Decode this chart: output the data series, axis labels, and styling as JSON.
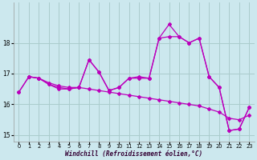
{
  "xlabel": "Windchill (Refroidissement éolien,°C)",
  "bg_color": "#cce8ee",
  "line_color": "#bb00bb",
  "grid_color": "#aacccc",
  "series1_x": [
    0,
    1,
    2,
    3,
    4,
    5,
    6,
    7,
    8,
    9,
    10,
    11,
    12,
    13,
    14,
    15,
    16,
    17,
    18,
    19,
    20,
    21,
    22,
    23
  ],
  "series1_y": [
    16.4,
    16.9,
    16.85,
    16.7,
    16.6,
    16.55,
    16.55,
    16.5,
    16.45,
    16.4,
    16.35,
    16.3,
    16.25,
    16.2,
    16.15,
    16.1,
    16.05,
    16.0,
    15.95,
    15.85,
    15.75,
    15.55,
    15.5,
    15.65
  ],
  "series2_x": [
    0,
    1,
    2,
    3,
    4,
    5,
    6,
    7,
    8,
    9,
    10,
    11,
    12,
    13,
    14,
    15,
    16,
    17,
    18,
    19,
    20,
    21,
    22,
    23
  ],
  "series2_y": [
    16.4,
    16.9,
    16.85,
    16.65,
    16.5,
    16.5,
    16.55,
    17.45,
    17.05,
    16.45,
    16.55,
    16.85,
    16.85,
    16.85,
    18.15,
    18.2,
    18.2,
    18.0,
    18.15,
    16.9,
    16.55,
    15.15,
    15.2,
    15.9
  ],
  "series3_x": [
    1,
    2,
    3,
    4,
    5,
    6,
    7,
    8,
    9,
    10,
    11,
    12,
    13,
    14,
    15,
    16,
    17,
    18,
    19,
    20,
    21,
    22,
    23
  ],
  "series3_y": [
    16.9,
    16.85,
    16.65,
    16.55,
    16.5,
    16.55,
    17.45,
    17.05,
    16.45,
    16.55,
    16.85,
    16.9,
    16.85,
    18.15,
    18.6,
    18.2,
    18.0,
    18.15,
    16.9,
    16.55,
    15.15,
    15.2,
    15.9
  ],
  "ylim": [
    14.8,
    19.3
  ],
  "xlim": [
    -0.5,
    23.5
  ],
  "yticks": [
    15,
    16,
    17,
    18
  ],
  "xticks": [
    0,
    1,
    2,
    3,
    4,
    5,
    6,
    7,
    8,
    9,
    10,
    11,
    12,
    13,
    14,
    15,
    16,
    17,
    18,
    19,
    20,
    21,
    22,
    23
  ]
}
